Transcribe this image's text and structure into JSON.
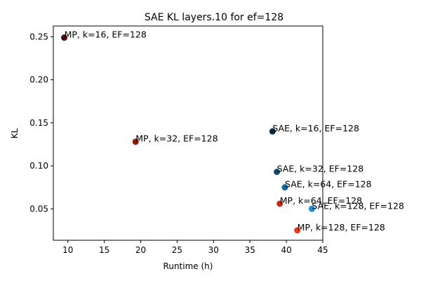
{
  "chart_data": {
    "type": "scatter",
    "title": "SAE KL layers.10 for ef=128",
    "xlabel": "Runtime (h)",
    "ylabel": "KL",
    "xlim": [
      8,
      45
    ],
    "ylim": [
      0.0135,
      0.2625
    ],
    "x_ticks": [
      10,
      15,
      20,
      25,
      30,
      35,
      40,
      45
    ],
    "y_ticks": [
      0.05,
      0.1,
      0.15,
      0.2,
      0.25
    ],
    "grid": false,
    "points": [
      {
        "label": "MP, k=16, EF=128",
        "x": 9.5,
        "y": 0.249,
        "color": "#4a0b0b"
      },
      {
        "label": "MP, k=32, EF=128",
        "x": 19.3,
        "y": 0.128,
        "color": "#8c1a0a"
      },
      {
        "label": "SAE, k=16, EF=128",
        "x": 38.1,
        "y": 0.14,
        "color": "#0b2a40"
      },
      {
        "label": "SAE, k=32, EF=128",
        "x": 38.7,
        "y": 0.093,
        "color": "#0d4a6e"
      },
      {
        "label": "SAE, k=64, EF=128",
        "x": 39.8,
        "y": 0.075,
        "color": "#0e6a9e"
      },
      {
        "label": "MP, k=64, EF=128",
        "x": 39.1,
        "y": 0.056,
        "color": "#c8280c"
      },
      {
        "label": "SAE, k=128, EF=128",
        "x": 43.5,
        "y": 0.05,
        "color": "#1e8fd6"
      },
      {
        "label": "MP, k=128, EF=128",
        "x": 41.5,
        "y": 0.025,
        "color": "#f03c14"
      }
    ]
  }
}
